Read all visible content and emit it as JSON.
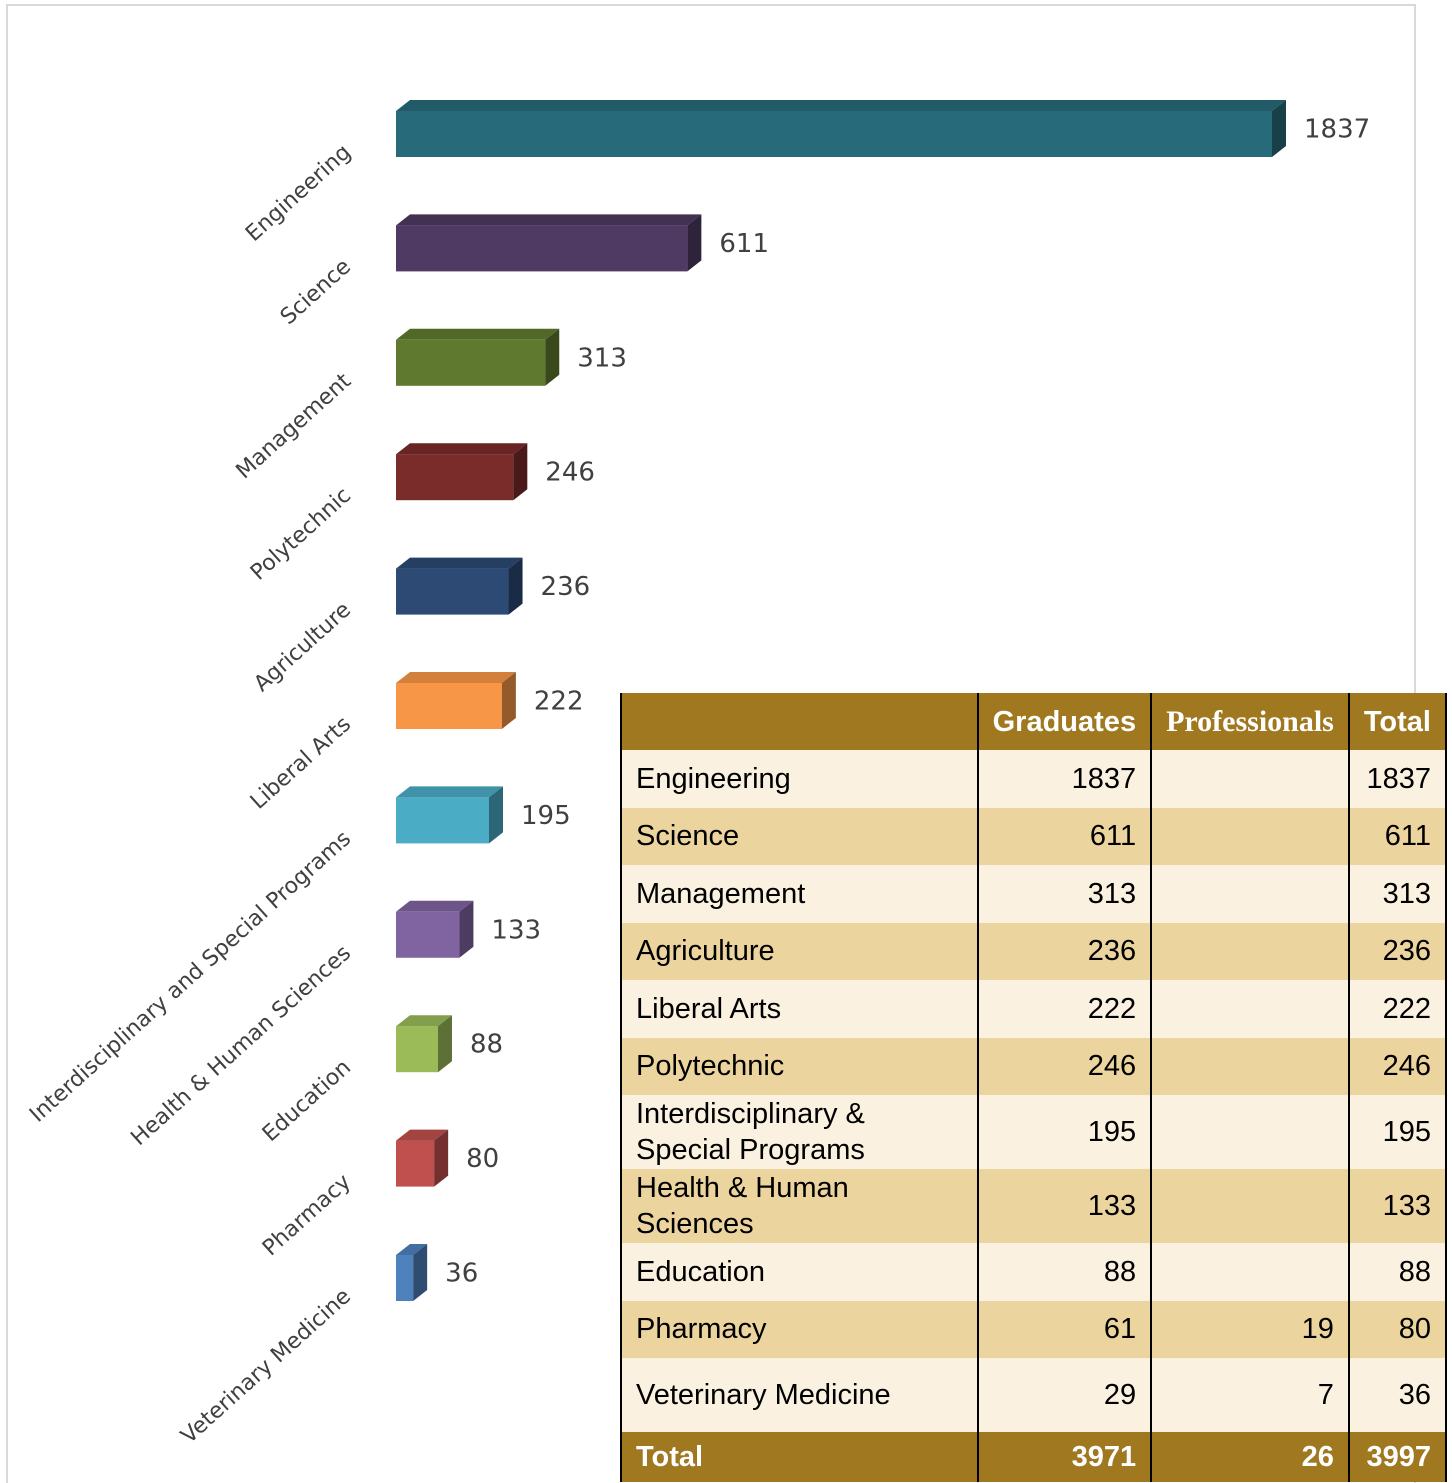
{
  "chart_data": {
    "type": "bar",
    "orientation": "horizontal",
    "categories": [
      "Engineering",
      "Science",
      "Management",
      "Polytechnic",
      "Agriculture",
      "Liberal Arts",
      "Interdisciplinary and Special Programs",
      "Health & Human Sciences",
      "Education",
      "Pharmacy",
      "Veterinary Medicine"
    ],
    "values": [
      1837,
      611,
      313,
      246,
      236,
      222,
      195,
      133,
      88,
      80,
      36
    ],
    "colors": [
      "#276b7a",
      "#4f3a63",
      "#5f7a2e",
      "#7a2c2a",
      "#2c4a73",
      "#f79646",
      "#4bacc6",
      "#8064a2",
      "#9bbb59",
      "#c0504d",
      "#4f81bd"
    ]
  },
  "table": {
    "header": [
      "Graduates",
      "Professionals",
      "Total"
    ],
    "rows": [
      {
        "name": "Engineering",
        "graduates": 1837,
        "total": 1837
      },
      {
        "name": "Science",
        "graduates": 611,
        "total": 611
      },
      {
        "name": "Management",
        "graduates": 313,
        "total": 313
      },
      {
        "name": "Agriculture",
        "graduates": 236,
        "total": 236
      },
      {
        "name": "Liberal Arts",
        "graduates": 222,
        "total": 222
      },
      {
        "name": "Polytechnic",
        "graduates": 246,
        "total": 246
      },
      {
        "name": "Interdisciplinary & Special Programs",
        "graduates": 195,
        "total": 195
      },
      {
        "name": "Health & Human Sciences",
        "graduates": 133,
        "total": 133
      },
      {
        "name": "Education",
        "graduates": 88,
        "total": 88
      },
      {
        "name": "Pharmacy",
        "graduates": 61,
        "professionals": 19,
        "total": 80
      },
      {
        "name": "Veterinary Medicine",
        "graduates": 29,
        "professionals": 7,
        "total": 36
      }
    ],
    "total": {
      "name": "Total",
      "graduates": 3971,
      "professionals": 26,
      "total": 3997
    }
  }
}
